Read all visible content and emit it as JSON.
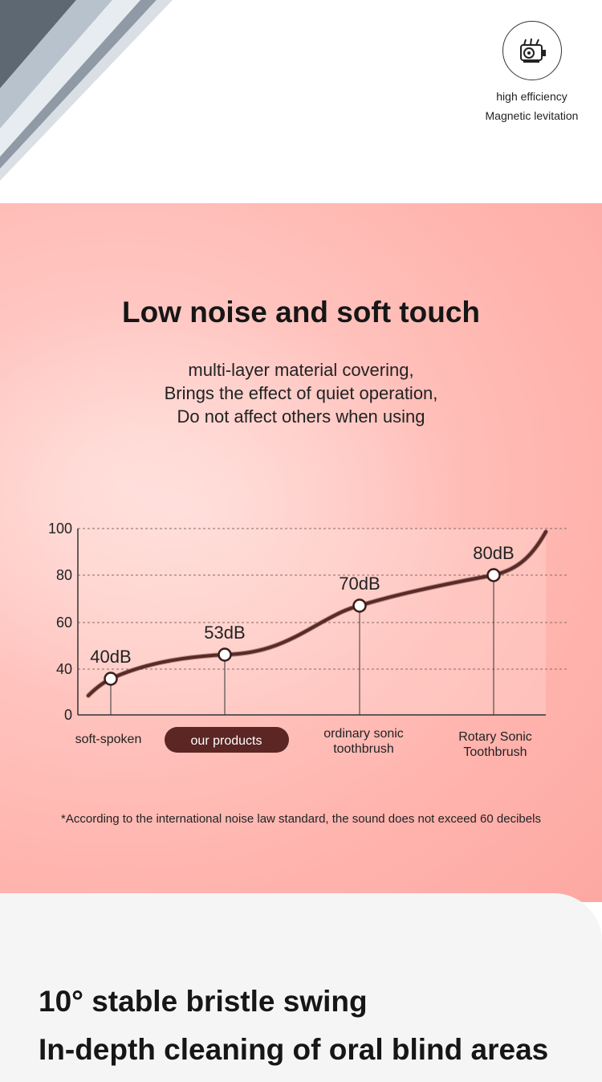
{
  "feature": {
    "icon": "motor-icon",
    "line1": "high efficiency",
    "line2": "Magnetic levitation"
  },
  "section": {
    "title": "Low noise and soft touch",
    "subtitle_lines": [
      "multi-layer material covering,",
      "Brings the effect of quiet operation,",
      "Do not affect others when using"
    ],
    "footnote": "*According to the international noise law standard, the sound does not exceed 60 decibels"
  },
  "chart_data": {
    "type": "line",
    "title": "",
    "xlabel": "",
    "ylabel": "",
    "y_ticks": [
      "0",
      "40",
      "60",
      "80",
      "100"
    ],
    "categories": [
      [
        "soft-spoken"
      ],
      [
        "our products"
      ],
      [
        "ordinary sonic",
        "toothbrush"
      ],
      [
        "Rotary Sonic",
        "Toothbrush"
      ]
    ],
    "values": [
      40,
      53,
      70,
      80
    ],
    "value_labels": [
      "40dB",
      "53dB",
      "70dB",
      "80dB"
    ],
    "highlight_category_index": 1,
    "grid": true,
    "colors": {
      "line": "#5a2a26",
      "highlight": "#5b2623"
    }
  },
  "bottom": {
    "line1": "10° stable bristle swing",
    "line2": "In-depth cleaning of oral blind areas"
  }
}
